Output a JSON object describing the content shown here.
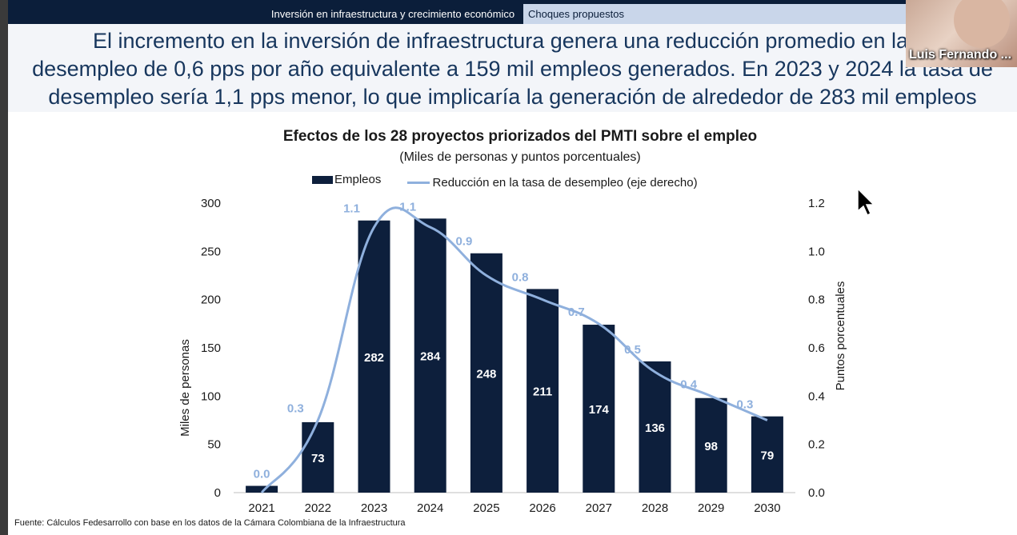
{
  "header": {
    "tabs": [
      {
        "label": "Inversión en infraestructura y crecimiento económico"
      },
      {
        "label": "Choques propuestos"
      }
    ]
  },
  "headline": {
    "line1": "El incremento en la inversión de infraestructura genera una reducción promedio en la ta",
    "line2": "desempleo de 0,6 pps por año equivalente a 159 mil empleos generados. En 2023 y 2024 la tasa de",
    "line3": "desempleo sería 1,1 pps menor, lo que implicaría la generación de alrededor de 283 mil empleos"
  },
  "video_call": {
    "participant_name": "Luis Fernando ..."
  },
  "source_note": "Fuente: Cálculos Fedesarrollo con base en los datos de la Cámara Colombiana de la Infraestructura",
  "colors": {
    "bars": "#0d1f3c",
    "line": "#8fb0dd",
    "bar_label": "#ffffff",
    "line_label": "#8fb0dd"
  },
  "chart_data": {
    "type": "bar",
    "title": "Efectos de los 28 proyectos priorizados del PMTI sobre el empleo",
    "subtitle": "(Miles de personas y puntos porcentuales)",
    "categories": [
      "2021",
      "2022",
      "2023",
      "2024",
      "2025",
      "2026",
      "2027",
      "2028",
      "2029",
      "2030"
    ],
    "series": [
      {
        "name": "Empleos",
        "type": "bar",
        "axis": "left",
        "values": [
          7,
          73,
          282,
          284,
          248,
          211,
          174,
          136,
          98,
          79
        ]
      },
      {
        "name": "Reducción en la tasa de desempleo (eje derecho)",
        "type": "line",
        "axis": "right",
        "values": [
          0.0,
          0.3,
          1.1,
          1.1,
          0.9,
          0.8,
          0.7,
          0.5,
          0.4,
          0.3
        ]
      }
    ],
    "bar_labels": [
      "",
      "73",
      "282",
      "284",
      "248",
      "211",
      "174",
      "136",
      "98",
      "79"
    ],
    "line_labels": [
      "0.0",
      "0.3",
      "1.1",
      "1.1",
      "0.9",
      "0.8",
      "0.7",
      "0.5",
      "0.4",
      "0.3"
    ],
    "ylabel": "Miles de personas",
    "y2label": "Puntos porcentuales",
    "ylim": [
      0,
      300
    ],
    "yticks": [
      "0",
      "50",
      "100",
      "150",
      "200",
      "250",
      "300"
    ],
    "y2lim": [
      0,
      1.2
    ],
    "y2ticks": [
      "0.0",
      "0.2",
      "0.4",
      "0.6",
      "0.8",
      "1.0",
      "1.2"
    ],
    "grid": false,
    "legend_position": "top"
  }
}
